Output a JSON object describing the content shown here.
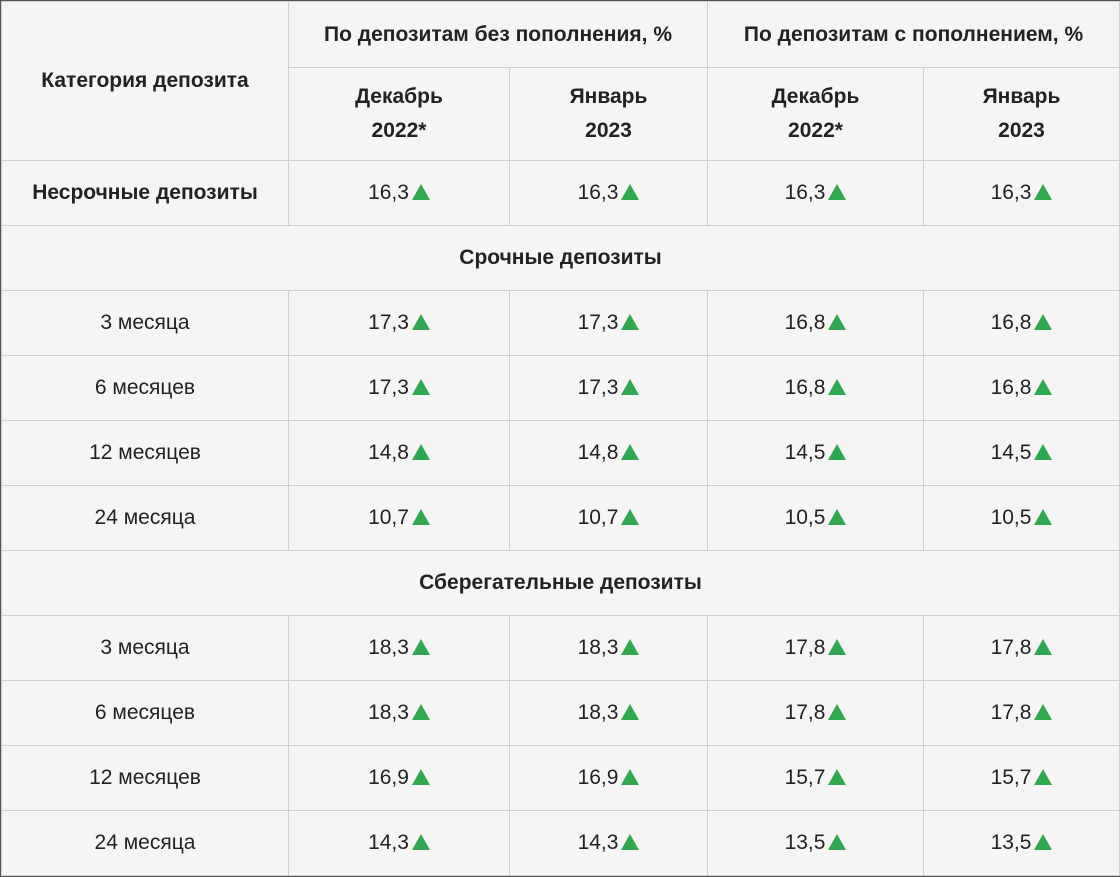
{
  "header": {
    "category_label": "Категория депозита",
    "group1": "По депозитам без пополнения, %",
    "group2": "По депозитам с пополнением, %",
    "subcols": [
      "Декабрь 2022*",
      "Январь 2023",
      "Декабрь 2022*",
      "Январь 2023"
    ]
  },
  "colors": {
    "up_arrow": "#2fa84f",
    "grid": "#cfcfcf"
  },
  "rows": [
    {
      "type": "row",
      "label": "Несрочные депозиты",
      "bold": true,
      "values": [
        "16,3",
        "16,3",
        "16,3",
        "16,3"
      ]
    },
    {
      "type": "section",
      "label": "Срочные депозиты"
    },
    {
      "type": "row",
      "label": "3 месяца",
      "values": [
        "17,3",
        "17,3",
        "16,8",
        "16,8"
      ]
    },
    {
      "type": "row",
      "label": "6 месяцев",
      "values": [
        "17,3",
        "17,3",
        "16,8",
        "16,8"
      ]
    },
    {
      "type": "row",
      "label": "12 месяцев",
      "values": [
        "14,8",
        "14,8",
        "14,5",
        "14,5"
      ]
    },
    {
      "type": "row",
      "label": "24 месяца",
      "values": [
        "10,7",
        "10,7",
        "10,5",
        "10,5"
      ]
    },
    {
      "type": "section",
      "label": "Сберегательные депозиты"
    },
    {
      "type": "row",
      "label": "3 месяца",
      "values": [
        "18,3",
        "18,3",
        "17,8",
        "17,8"
      ]
    },
    {
      "type": "row",
      "label": "6 месяцев",
      "values": [
        "18,3",
        "18,3",
        "17,8",
        "17,8"
      ]
    },
    {
      "type": "row",
      "label": "12 месяцев",
      "values": [
        "16,9",
        "16,9",
        "15,7",
        "15,7"
      ]
    },
    {
      "type": "row",
      "label": "24 месяца",
      "values": [
        "14,3",
        "14,3",
        "13,5",
        "13,5"
      ]
    }
  ],
  "icons": {
    "trend": "arrow-up-icon"
  }
}
